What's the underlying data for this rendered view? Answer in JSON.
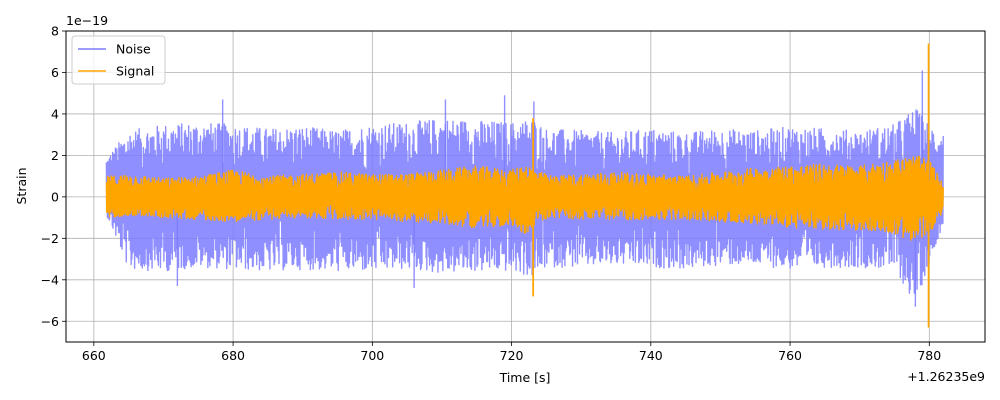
{
  "chart_data": {
    "type": "line",
    "xlabel": "Time [s]",
    "ylabel": "Strain",
    "x_offset_label": "+1.26235e9",
    "y_scale_label": "1e−19",
    "xlim": [
      656,
      788
    ],
    "ylim": [
      -7,
      8
    ],
    "x_ticks": [
      660,
      680,
      700,
      720,
      740,
      760,
      780
    ],
    "y_ticks": [
      -6,
      -4,
      -2,
      0,
      2,
      4,
      6,
      8
    ],
    "grid": true,
    "legend_position": "upper-left",
    "series": [
      {
        "name": "Noise",
        "color": "#7b7bff",
        "x_range": [
          661.8,
          782.0
        ],
        "envelope": {
          "x": [
            662,
            665,
            670,
            675,
            680,
            685,
            690,
            695,
            700,
            705,
            710,
            715,
            720,
            723,
            725,
            730,
            735,
            740,
            745,
            750,
            755,
            760,
            765,
            770,
            775,
            778,
            780,
            782
          ],
          "upper": [
            2.0,
            3.2,
            3.5,
            3.6,
            3.5,
            3.3,
            3.4,
            3.2,
            3.5,
            3.6,
            3.8,
            3.7,
            3.6,
            3.8,
            3.3,
            3.2,
            3.1,
            3.3,
            3.1,
            3.3,
            3.2,
            3.4,
            3.3,
            3.2,
            3.5,
            4.3,
            3.5,
            3.2
          ],
          "lower": [
            -1.0,
            -3.5,
            -3.6,
            -3.4,
            -3.5,
            -3.6,
            -3.5,
            -3.6,
            -3.6,
            -3.5,
            -3.7,
            -3.6,
            -3.6,
            -3.9,
            -3.4,
            -3.4,
            -3.3,
            -3.4,
            -3.5,
            -3.3,
            -3.3,
            -3.5,
            -3.4,
            -3.4,
            -3.5,
            -5.2,
            -3.2,
            -1.3
          ]
        },
        "peaks": [
          {
            "x": 678.5,
            "y": 4.7
          },
          {
            "x": 710.5,
            "y": 4.7
          },
          {
            "x": 719.0,
            "y": 4.9
          },
          {
            "x": 723.2,
            "y": 4.6
          },
          {
            "x": 779.0,
            "y": 6.1
          },
          {
            "x": 672.0,
            "y": -4.3
          },
          {
            "x": 706.0,
            "y": -4.4
          },
          {
            "x": 778.0,
            "y": -5.3
          }
        ]
      },
      {
        "name": "Signal",
        "color": "#ffa500",
        "x_range": [
          661.8,
          782.0
        ],
        "envelope": {
          "x": [
            662,
            665,
            670,
            675,
            680,
            685,
            690,
            695,
            700,
            705,
            710,
            715,
            720,
            722,
            724,
            726,
            730,
            735,
            740,
            745,
            750,
            755,
            760,
            765,
            770,
            775,
            778,
            780,
            782
          ],
          "upper": [
            1.0,
            1.1,
            0.9,
            1.0,
            1.3,
            1.0,
            1.1,
            1.2,
            1.1,
            1.1,
            1.3,
            1.5,
            1.3,
            1.6,
            1.2,
            1.0,
            1.1,
            1.2,
            1.1,
            1.0,
            1.2,
            1.4,
            1.5,
            1.6,
            1.5,
            1.8,
            2.0,
            1.8,
            0.6
          ],
          "lower": [
            -1.0,
            -0.9,
            -1.0,
            -1.1,
            -1.2,
            -1.1,
            -1.0,
            -1.1,
            -1.1,
            -1.2,
            -1.3,
            -1.5,
            -1.4,
            -1.8,
            -1.2,
            -1.0,
            -1.1,
            -1.1,
            -1.1,
            -1.1,
            -1.2,
            -1.3,
            -1.5,
            -1.6,
            -1.6,
            -1.8,
            -2.3,
            -1.8,
            -0.7
          ]
        },
        "spikes": [
          {
            "x": 723.1,
            "y_max": 3.8,
            "y_min": -4.8
          },
          {
            "x": 779.9,
            "y_max": 7.4,
            "y_min": -6.3
          }
        ]
      }
    ]
  }
}
